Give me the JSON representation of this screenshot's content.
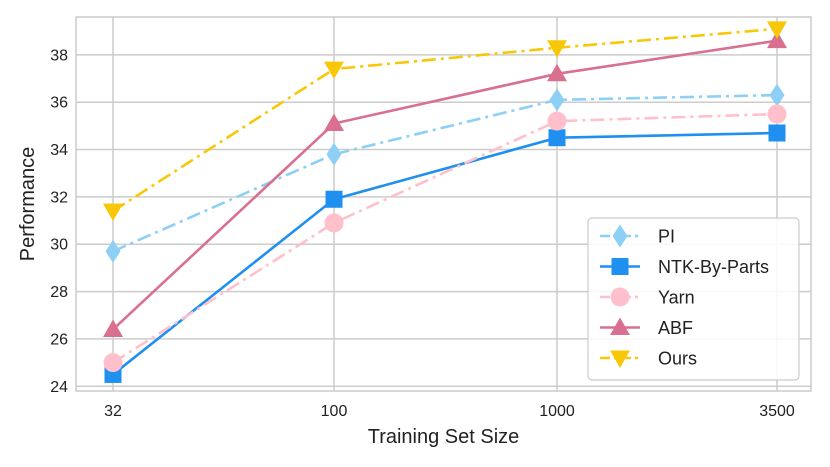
{
  "chart_data": {
    "type": "line",
    "xlabel": "Training Set Size",
    "ylabel": "Performance",
    "categories": [
      "32",
      "100",
      "1000",
      "3500"
    ],
    "ylim": [
      23.8,
      39.6
    ],
    "yticks": [
      24,
      26,
      28,
      30,
      32,
      34,
      36,
      38
    ],
    "grid": true,
    "legend_position": "lower-right",
    "series": [
      {
        "name": "PI",
        "values": [
          29.7,
          33.8,
          36.1,
          36.3
        ],
        "color": "#8ecff5",
        "linestyle": "dashdot",
        "marker": "diamond"
      },
      {
        "name": "NTK-By-Parts",
        "values": [
          24.5,
          31.9,
          34.5,
          34.7
        ],
        "color": "#1f8ff0",
        "linestyle": "solid",
        "marker": "square"
      },
      {
        "name": "Yarn",
        "values": [
          25.0,
          30.9,
          35.2,
          35.5
        ],
        "color": "#ffc0cb",
        "linestyle": "dashdot",
        "marker": "circle"
      },
      {
        "name": "ABF",
        "values": [
          26.4,
          35.1,
          37.2,
          38.6
        ],
        "color": "#d9708f",
        "linestyle": "solid",
        "marker": "triangle-up"
      },
      {
        "name": "Ours",
        "values": [
          31.4,
          37.4,
          38.3,
          39.1
        ],
        "color": "#f8c808",
        "linestyle": "dashdot",
        "marker": "triangle-down"
      }
    ]
  }
}
